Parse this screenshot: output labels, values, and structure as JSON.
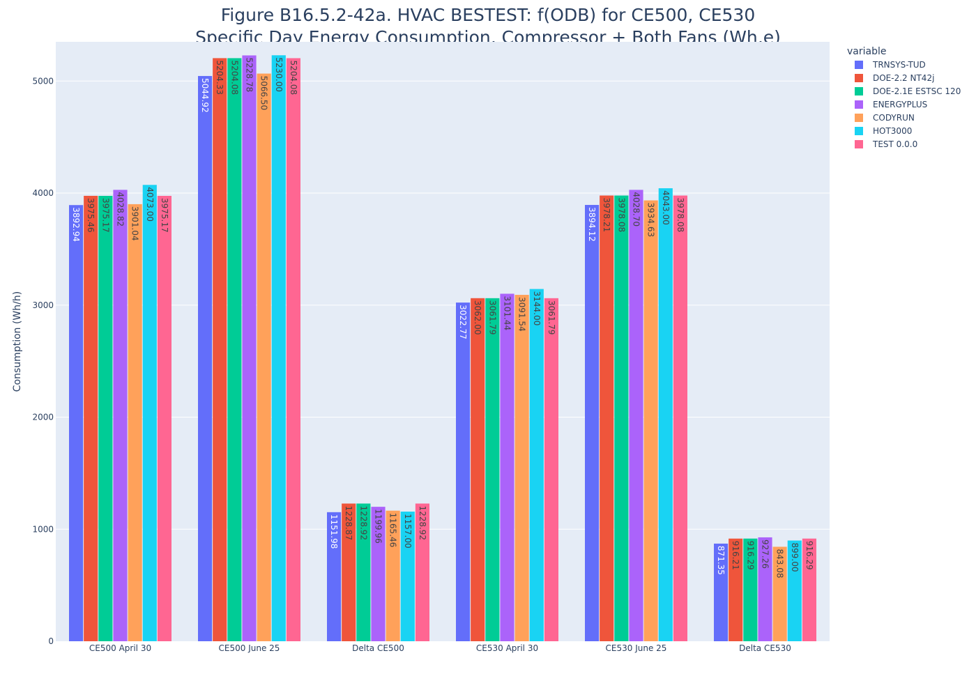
{
  "chart_data": {
    "type": "bar",
    "title": "Figure B16.5.2-42a. HVAC BESTEST: f(ODB) for CE500, CE530",
    "subtitle": "Specific Day Energy Consumption, Compressor + Both Fans (Wh,e)",
    "xlabel": "",
    "ylabel": "Consumption (Wh/h)",
    "ylim": [
      0,
      5350
    ],
    "yticks": [
      0,
      1000,
      2000,
      3000,
      4000,
      5000
    ],
    "grid": true,
    "legend_title": "variable",
    "legend_position": "top-right",
    "categories": [
      "CE500 April 30",
      "CE500 June 25",
      "Delta CE500",
      "CE530 April 30",
      "CE530 June 25",
      "Delta CE530"
    ],
    "series": [
      {
        "name": "TRNSYS-TUD",
        "color": "#636efa",
        "values": [
          3892.94,
          5044.92,
          1151.98,
          3022.77,
          3894.12,
          871.35
        ],
        "labels": [
          "3892.94",
          "5044.92",
          "1151.98",
          "3022.77",
          "3894.12",
          "871.35"
        ]
      },
      {
        "name": "DOE-2.2 NT42j",
        "color": "#EF553B",
        "values": [
          3975.46,
          5204.33,
          1228.87,
          3062.0,
          3978.21,
          916.21
        ],
        "labels": [
          "3975.46",
          "5204.33",
          "1228.87",
          "3062.00",
          "3978.21",
          "916.21"
        ]
      },
      {
        "name": "DOE-2.1E ESTSC 120",
        "color": "#00cc96",
        "values": [
          3975.17,
          5204.08,
          1228.92,
          3061.79,
          3978.08,
          916.29
        ],
        "labels": [
          "3975.17",
          "5204.08",
          "1228.92",
          "3061.79",
          "3978.08",
          "916.29"
        ]
      },
      {
        "name": "ENERGYPLUS",
        "color": "#ab63fa",
        "values": [
          4028.82,
          5228.78,
          1199.96,
          3101.44,
          4028.7,
          927.26
        ],
        "labels": [
          "4028.82",
          "5228.78",
          "1199.96",
          "3101.44",
          "4028.70",
          "927.26"
        ]
      },
      {
        "name": "CODYRUN",
        "color": "#FFA15A",
        "values": [
          3901.04,
          5066.5,
          1165.46,
          3091.54,
          3934.63,
          843.08
        ],
        "labels": [
          "3901.04",
          "5066.50",
          "1165.46",
          "3091.54",
          "3934.63",
          "843.08"
        ]
      },
      {
        "name": "HOT3000",
        "color": "#19d3f3",
        "values": [
          4073.0,
          5230.0,
          1157.0,
          3144.0,
          4043.0,
          899.0
        ],
        "labels": [
          "4073.00",
          "5230.00",
          "1157.00",
          "3144.00",
          "4043.00",
          "899.00"
        ]
      },
      {
        "name": "TEST 0.0.0",
        "color": "#FF6692",
        "values": [
          3975.17,
          5204.08,
          1228.92,
          3061.79,
          3978.08,
          916.29
        ],
        "labels": [
          "3975.17",
          "5204.08",
          "1228.92",
          "3061.79",
          "3978.08",
          "916.29"
        ]
      }
    ],
    "colors": {
      "plot_bg": "#e5ecf6",
      "grid": "#ffffff",
      "text": "#2a3f5f",
      "label_dark": "#444444",
      "label_light": "#ffffff"
    }
  }
}
